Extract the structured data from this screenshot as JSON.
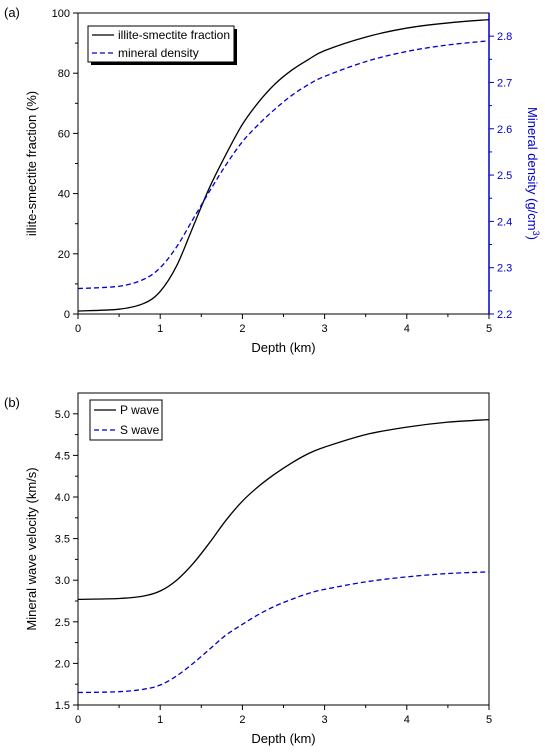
{
  "colors": {
    "axis_black": "#000000",
    "accent_blue": "#0000cc"
  },
  "chart_data": [
    {
      "panel_label": "(a)",
      "type": "line",
      "xlabel": "Depth (km)",
      "xlim": [
        0,
        5
      ],
      "xticks": [
        0,
        1,
        2,
        3,
        4,
        5
      ],
      "ylabel": "illite-smectite fraction (%)",
      "ylim": [
        0,
        100
      ],
      "yticks": [
        0,
        20,
        40,
        60,
        80,
        100
      ],
      "y2label": "Mineral density (g/cm",
      "y2label_sup": "3",
      "y2label_close": ")",
      "y2lim": [
        2.2,
        2.85
      ],
      "y2ticks": [
        2.2,
        2.3,
        2.4,
        2.5,
        2.6,
        2.7,
        2.8
      ],
      "legend_position": "top-left",
      "grid": false,
      "series": [
        {
          "name": "illite-smectite fraction",
          "axis": "left",
          "style": "solid",
          "color": "#000000",
          "x": [
            0,
            0.5,
            0.8,
            1.0,
            1.2,
            1.4,
            1.6,
            1.8,
            2.0,
            2.2,
            2.4,
            2.6,
            2.8,
            3.0,
            3.5,
            4.0,
            4.5,
            5.0
          ],
          "y": [
            1,
            1.6,
            3.5,
            7.5,
            16,
            29,
            42,
            53,
            63,
            70.5,
            76.5,
            81,
            84.5,
            87.5,
            92,
            95,
            96.7,
            97.8
          ]
        },
        {
          "name": "mineral density",
          "axis": "right",
          "style": "dashed",
          "color": "#0000cc",
          "x": [
            0,
            0.5,
            0.8,
            1.0,
            1.2,
            1.4,
            1.6,
            1.8,
            2.0,
            2.2,
            2.4,
            2.6,
            2.8,
            3.0,
            3.5,
            4.0,
            4.5,
            5.0
          ],
          "y": [
            2.255,
            2.26,
            2.275,
            2.3,
            2.345,
            2.405,
            2.465,
            2.522,
            2.572,
            2.61,
            2.643,
            2.672,
            2.695,
            2.713,
            2.745,
            2.767,
            2.781,
            2.79
          ]
        }
      ]
    },
    {
      "panel_label": "(b)",
      "type": "line",
      "xlabel": "Depth (km)",
      "xlim": [
        0,
        5
      ],
      "xticks": [
        0,
        1,
        2,
        3,
        4,
        5
      ],
      "ylabel": "Mineral wave velocity (km/s)",
      "ylim": [
        1.5,
        5.25
      ],
      "yticks": [
        1.5,
        2.0,
        2.5,
        3.0,
        3.5,
        4.0,
        4.5,
        5.0
      ],
      "legend_position": "top-left",
      "grid": false,
      "series": [
        {
          "name": "P wave",
          "style": "solid",
          "color": "#000000",
          "x": [
            0,
            0.5,
            0.8,
            1.0,
            1.2,
            1.4,
            1.6,
            1.8,
            2.0,
            2.2,
            2.4,
            2.6,
            2.8,
            3.0,
            3.5,
            4.0,
            4.5,
            5.0
          ],
          "y": [
            2.77,
            2.78,
            2.81,
            2.87,
            3.0,
            3.2,
            3.45,
            3.72,
            3.95,
            4.13,
            4.28,
            4.41,
            4.52,
            4.6,
            4.75,
            4.84,
            4.9,
            4.93
          ]
        },
        {
          "name": "S wave",
          "style": "dashed",
          "color": "#0000cc",
          "x": [
            0,
            0.5,
            0.8,
            1.0,
            1.2,
            1.4,
            1.6,
            1.8,
            2.0,
            2.2,
            2.4,
            2.6,
            2.8,
            3.0,
            3.5,
            4.0,
            4.5,
            5.0
          ],
          "y": [
            1.65,
            1.66,
            1.69,
            1.74,
            1.85,
            2.0,
            2.17,
            2.34,
            2.47,
            2.59,
            2.69,
            2.77,
            2.84,
            2.89,
            2.98,
            3.04,
            3.08,
            3.1
          ]
        }
      ]
    }
  ]
}
